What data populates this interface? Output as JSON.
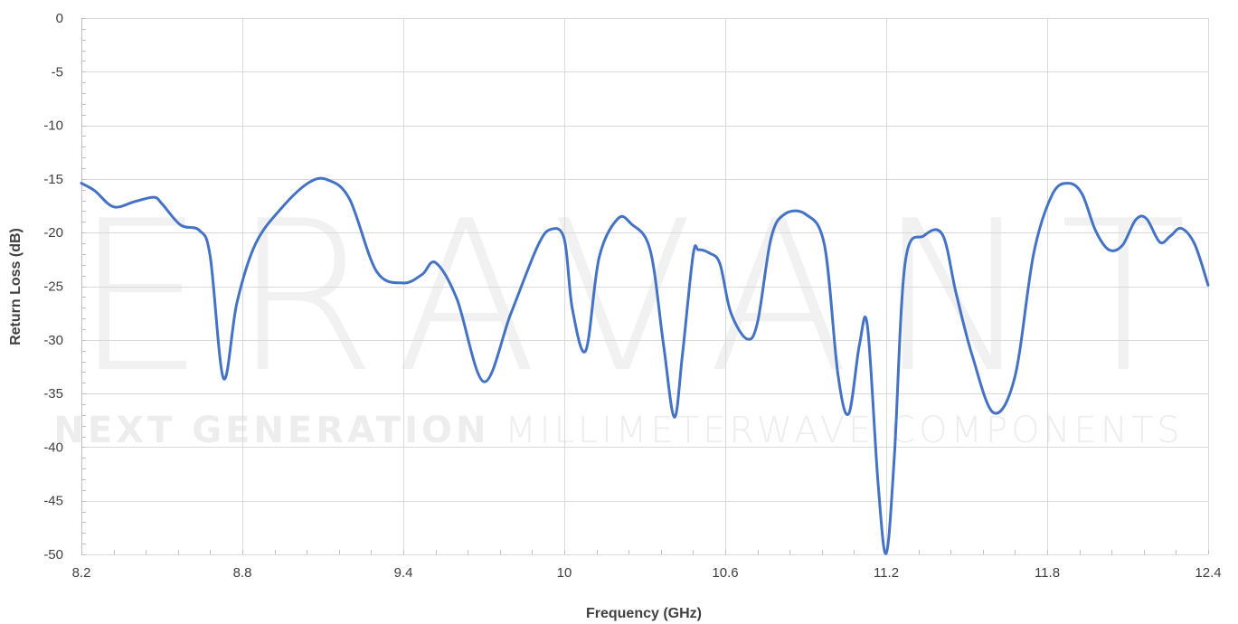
{
  "watermark": {
    "brand": "ERAVANT",
    "tagline_bold": "NEXT GENERATION",
    "tagline_light": " MILLIMETERWAVE COMPONENTS"
  },
  "chart_data": {
    "type": "line",
    "xlabel": "Frequency (GHz)",
    "ylabel": "Return Loss (dB)",
    "xlim": [
      8.2,
      12.4
    ],
    "ylim": [
      -50,
      0
    ],
    "xticks": [
      8.2,
      8.8,
      9.4,
      10,
      10.6,
      11.2,
      11.8,
      12.4
    ],
    "xtick_labels": [
      "8.2",
      "8.8",
      "9.4",
      "10",
      "10.6",
      "11.2",
      "11.8",
      "12.4"
    ],
    "yticks": [
      0,
      -5,
      -10,
      -15,
      -20,
      -25,
      -30,
      -35,
      -40,
      -45,
      -50
    ],
    "ytick_labels": [
      "0",
      "-5",
      "-10",
      "-15",
      "-20",
      "-25",
      "-30",
      "-35",
      "-40",
      "-45",
      "-50"
    ],
    "grid": true,
    "line_color": "#4472c4",
    "series": [
      {
        "x": [
          8.2,
          8.25,
          8.32,
          8.4,
          8.47,
          8.5,
          8.57,
          8.64,
          8.68,
          8.73,
          8.78,
          8.85,
          8.95,
          9.05,
          9.12,
          9.2,
          9.3,
          9.4,
          9.47,
          9.52,
          9.6,
          9.7,
          9.8,
          9.9,
          9.95,
          10.0,
          10.03,
          10.08,
          10.13,
          10.2,
          10.25,
          10.32,
          10.37,
          10.41,
          10.44,
          10.48,
          10.5,
          10.54,
          10.58,
          10.62,
          10.68,
          10.72,
          10.77,
          10.82,
          10.9,
          10.97,
          11.02,
          11.06,
          11.1,
          11.13,
          11.17,
          11.2,
          11.23,
          11.27,
          11.34,
          11.41,
          11.46,
          11.52,
          11.6,
          11.68,
          11.75,
          11.82,
          11.88,
          11.93,
          11.98,
          12.03,
          12.08,
          12.13,
          12.17,
          12.22,
          12.26,
          12.3,
          12.35,
          12.4
        ],
        "y": [
          -15.4,
          -16.1,
          -17.6,
          -17.1,
          -16.7,
          -17.3,
          -19.3,
          -19.8,
          -22.2,
          -33.6,
          -26.5,
          -21.0,
          -17.6,
          -15.3,
          -15.1,
          -16.9,
          -23.6,
          -24.7,
          -23.9,
          -22.8,
          -26.2,
          -33.9,
          -27.6,
          -21.3,
          -19.7,
          -20.6,
          -27.1,
          -31.0,
          -22.3,
          -18.7,
          -19.2,
          -21.6,
          -30.5,
          -37.2,
          -31.5,
          -22.1,
          -21.6,
          -21.9,
          -22.9,
          -27.4,
          -29.9,
          -28.4,
          -20.6,
          -18.3,
          -18.3,
          -21.2,
          -33.2,
          -36.9,
          -30.5,
          -28.7,
          -43.5,
          -49.9,
          -41.0,
          -22.9,
          -20.3,
          -20.2,
          -25.6,
          -31.4,
          -36.8,
          -33.4,
          -21.9,
          -16.4,
          -15.4,
          -16.4,
          -19.8,
          -21.6,
          -21.2,
          -18.8,
          -18.7,
          -20.9,
          -20.3,
          -19.6,
          -21.1,
          -24.9
        ]
      }
    ]
  }
}
